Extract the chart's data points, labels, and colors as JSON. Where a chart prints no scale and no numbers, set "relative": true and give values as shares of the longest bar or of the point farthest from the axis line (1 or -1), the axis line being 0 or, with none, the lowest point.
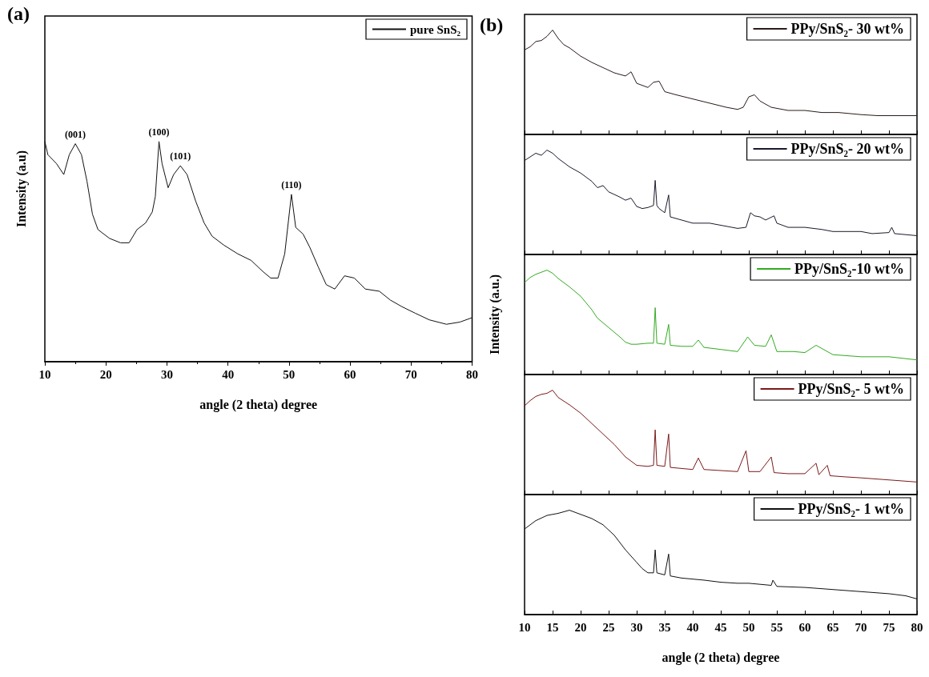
{
  "chart_data": [
    {
      "type": "line",
      "title": "(a)",
      "xlabel": "angle (2 theta) degree",
      "ylabel": "Intensity (a.u)",
      "relative": true,
      "xlim": [
        10,
        80
      ],
      "xticks": [
        10,
        20,
        30,
        40,
        50,
        60,
        70,
        80
      ],
      "tick_labels": "x",
      "legend": "top right",
      "marker": "none",
      "annotations": [
        {
          "text": "(001)",
          "x": 15.0,
          "y": 0.99
        },
        {
          "text": "(100)",
          "x": 28.7,
          "y": 1.0
        },
        {
          "text": "(101)",
          "x": 32.2,
          "y": 0.89
        },
        {
          "text": "(110)",
          "x": 50.4,
          "y": 0.76
        }
      ],
      "series": [
        {
          "name": "pure SnS₂",
          "color": "#111111",
          "x": [
            10,
            10.5,
            11.9,
            13.1,
            14.0,
            15.0,
            16.0,
            16.9,
            17.8,
            18.7,
            20.6,
            22.4,
            23.8,
            25.1,
            26.5,
            27.6,
            28.1,
            28.7,
            29.2,
            30.2,
            31.1,
            32.2,
            33.3,
            34.7,
            36.1,
            37.4,
            39.3,
            41.6,
            43.8,
            45.7,
            47.0,
            48.2,
            49.3,
            50.4,
            51.1,
            52.3,
            53.4,
            54.8,
            56.1,
            57.5,
            59.1,
            60.7,
            62.5,
            64.8,
            66.6,
            68.5,
            70.7,
            73.0,
            75.8,
            78.0,
            80.0
          ],
          "values": [
            1.0,
            0.94,
            0.9,
            0.85,
            0.94,
            0.99,
            0.94,
            0.82,
            0.67,
            0.6,
            0.56,
            0.54,
            0.54,
            0.6,
            0.63,
            0.68,
            0.75,
            1.0,
            0.9,
            0.79,
            0.85,
            0.89,
            0.85,
            0.73,
            0.63,
            0.57,
            0.53,
            0.49,
            0.46,
            0.41,
            0.38,
            0.38,
            0.49,
            0.76,
            0.61,
            0.58,
            0.52,
            0.43,
            0.35,
            0.33,
            0.39,
            0.38,
            0.33,
            0.32,
            0.28,
            0.25,
            0.22,
            0.19,
            0.17,
            0.18,
            0.2
          ]
        }
      ]
    },
    {
      "type": "line",
      "title": "(b)",
      "relative": true,
      "xlim": [
        10,
        80
      ],
      "xticks": [
        10,
        15,
        20,
        25,
        30,
        35,
        40,
        45,
        50,
        55,
        60,
        65,
        70,
        75,
        80
      ],
      "tick_labels": false,
      "legend": "top right",
      "marker": "none",
      "series": [
        {
          "name": "PPy/SnS₂- 30 wt%",
          "color": "#2b1a1a",
          "x": [
            10,
            11,
            12,
            13,
            14,
            15,
            16,
            17,
            18,
            20,
            22,
            24,
            26,
            28,
            29,
            30,
            31,
            32,
            33,
            34,
            35,
            37,
            40,
            43,
            46,
            48,
            49,
            50,
            51,
            52,
            54,
            57,
            60,
            63,
            66,
            70,
            73,
            76,
            80
          ],
          "values": [
            0.81,
            0.84,
            0.89,
            0.9,
            0.94,
            1.0,
            0.92,
            0.86,
            0.83,
            0.75,
            0.69,
            0.64,
            0.59,
            0.56,
            0.6,
            0.49,
            0.47,
            0.45,
            0.5,
            0.51,
            0.41,
            0.38,
            0.34,
            0.3,
            0.26,
            0.24,
            0.26,
            0.36,
            0.38,
            0.32,
            0.26,
            0.23,
            0.23,
            0.21,
            0.21,
            0.19,
            0.18,
            0.18,
            0.18
          ]
        }
      ]
    },
    {
      "type": "line",
      "relative": true,
      "xlim": [
        10,
        80
      ],
      "xticks": [
        10,
        15,
        20,
        25,
        30,
        35,
        40,
        45,
        50,
        55,
        60,
        65,
        70,
        75,
        80
      ],
      "tick_labels": false,
      "legend": "top right",
      "marker": "none",
      "series": [
        {
          "name": "PPy/SnS₂- 20 wt%",
          "color": "#1a1a2b",
          "x": [
            10,
            12,
            13,
            14,
            15,
            16,
            17,
            18,
            20,
            22,
            23,
            24,
            25,
            27,
            28,
            29,
            30,
            31,
            32,
            33,
            33.3,
            33.6,
            34,
            35,
            35.7,
            36,
            38,
            40,
            43,
            45,
            48,
            49.5,
            50.3,
            51,
            52,
            53,
            54.5,
            55,
            57,
            60,
            63,
            65,
            70,
            72,
            75,
            75.5,
            76,
            80
          ],
          "values": [
            0.9,
            0.97,
            0.95,
            1.0,
            0.97,
            0.92,
            0.88,
            0.84,
            0.78,
            0.7,
            0.64,
            0.66,
            0.6,
            0.55,
            0.52,
            0.54,
            0.46,
            0.44,
            0.45,
            0.47,
            0.71,
            0.47,
            0.44,
            0.4,
            0.57,
            0.36,
            0.33,
            0.3,
            0.3,
            0.28,
            0.25,
            0.26,
            0.4,
            0.37,
            0.36,
            0.33,
            0.37,
            0.3,
            0.26,
            0.26,
            0.24,
            0.22,
            0.22,
            0.2,
            0.21,
            0.26,
            0.2,
            0.18
          ]
        }
      ]
    },
    {
      "type": "line",
      "ylabel": "Intensity (a.u.)",
      "relative": true,
      "xlim": [
        10,
        80
      ],
      "xticks": [
        10,
        15,
        20,
        25,
        30,
        35,
        40,
        45,
        50,
        55,
        60,
        65,
        70,
        75,
        80
      ],
      "tick_labels": false,
      "legend": "top right",
      "marker": "none",
      "series": [
        {
          "name": "PPy/SnS₂-10 wt%",
          "color": "#33aa22",
          "x": [
            10,
            11,
            12,
            13,
            14,
            15,
            16,
            18,
            20,
            22,
            23,
            25,
            27,
            28,
            29,
            30,
            32,
            33,
            33.3,
            33.6,
            35,
            35.7,
            36,
            38,
            40,
            41,
            42,
            45,
            48,
            49.8,
            51,
            53,
            54,
            55,
            58,
            60,
            62,
            63,
            65,
            70,
            75,
            80
          ],
          "values": [
            0.88,
            0.93,
            0.96,
            0.98,
            1.0,
            0.97,
            0.92,
            0.84,
            0.75,
            0.62,
            0.54,
            0.45,
            0.36,
            0.31,
            0.29,
            0.29,
            0.3,
            0.3,
            0.64,
            0.3,
            0.29,
            0.48,
            0.28,
            0.27,
            0.27,
            0.33,
            0.26,
            0.24,
            0.22,
            0.36,
            0.28,
            0.27,
            0.38,
            0.22,
            0.22,
            0.21,
            0.28,
            0.25,
            0.19,
            0.17,
            0.17,
            0.14
          ]
        }
      ]
    },
    {
      "type": "line",
      "relative": true,
      "xlim": [
        10,
        80
      ],
      "xticks": [
        10,
        15,
        20,
        25,
        30,
        35,
        40,
        45,
        50,
        55,
        60,
        65,
        70,
        75,
        80
      ],
      "tick_labels": false,
      "legend": "top right",
      "marker": "none",
      "series": [
        {
          "name": "PPy/SnS₂- 5 wt%",
          "color": "#7a1a1a",
          "x": [
            10,
            11,
            12,
            13,
            14,
            15,
            16,
            18,
            20,
            22,
            24,
            26,
            28,
            30,
            32,
            33,
            33.3,
            33.6,
            35,
            35.7,
            36,
            38,
            40,
            41,
            42,
            45,
            48,
            49.5,
            50,
            52,
            54,
            54.5,
            57,
            60,
            62,
            62.5,
            64,
            64.5,
            67,
            70,
            75,
            80
          ],
          "values": [
            0.85,
            0.9,
            0.94,
            0.96,
            0.97,
            1.0,
            0.93,
            0.86,
            0.78,
            0.68,
            0.58,
            0.48,
            0.36,
            0.28,
            0.27,
            0.28,
            0.62,
            0.28,
            0.27,
            0.58,
            0.26,
            0.25,
            0.24,
            0.35,
            0.24,
            0.23,
            0.22,
            0.42,
            0.22,
            0.22,
            0.36,
            0.21,
            0.2,
            0.2,
            0.3,
            0.19,
            0.28,
            0.18,
            0.17,
            0.16,
            0.14,
            0.12
          ]
        }
      ]
    },
    {
      "type": "line",
      "xlabel": "angle (2 theta) degree",
      "relative": true,
      "xlim": [
        10,
        80
      ],
      "xticks": [
        10,
        15,
        20,
        25,
        30,
        35,
        40,
        45,
        50,
        55,
        60,
        65,
        70,
        75,
        80
      ],
      "tick_labels": "x",
      "legend": "top right",
      "marker": "none",
      "series": [
        {
          "name": "PPy/SnS₂- 1 wt%",
          "color": "#111111",
          "x": [
            10,
            12,
            14,
            16,
            18,
            20,
            22,
            24,
            26,
            28,
            30,
            31,
            32,
            33,
            33.3,
            33.6,
            35,
            35.7,
            36,
            38,
            40,
            42,
            45,
            48,
            50,
            54,
            54.3,
            55,
            60,
            65,
            70,
            75,
            78,
            80
          ],
          "values": [
            0.82,
            0.9,
            0.95,
            0.97,
            1.0,
            0.96,
            0.92,
            0.86,
            0.76,
            0.62,
            0.5,
            0.44,
            0.4,
            0.4,
            0.62,
            0.4,
            0.38,
            0.58,
            0.37,
            0.35,
            0.34,
            0.33,
            0.31,
            0.3,
            0.3,
            0.28,
            0.33,
            0.27,
            0.26,
            0.24,
            0.22,
            0.2,
            0.18,
            0.15
          ]
        }
      ]
    }
  ]
}
